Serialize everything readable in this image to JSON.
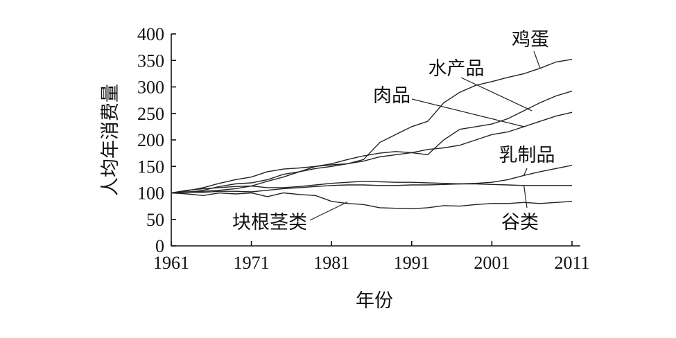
{
  "chart_data": {
    "type": "line",
    "xlabel": "年份",
    "ylabel": "人均年消费量",
    "xlim": [
      1961,
      2011
    ],
    "ylim": [
      0,
      400
    ],
    "xticks": [
      1961,
      1971,
      1981,
      1991,
      2001,
      2011
    ],
    "yticks": [
      0,
      50,
      100,
      150,
      200,
      250,
      300,
      350,
      400
    ],
    "grid": false,
    "legend": "inline labels with leader lines",
    "x": [
      1961,
      1963,
      1965,
      1967,
      1969,
      1971,
      1973,
      1975,
      1977,
      1979,
      1981,
      1983,
      1985,
      1987,
      1989,
      1991,
      1993,
      1995,
      1997,
      1999,
      2001,
      2003,
      2005,
      2007,
      2009,
      2011
    ],
    "series": [
      {
        "name": "鸡蛋",
        "values": [
          100,
          101,
          105,
          112,
          117,
          119,
          125,
          135,
          140,
          146,
          150,
          155,
          163,
          195,
          210,
          225,
          235,
          270,
          290,
          303,
          310,
          318,
          325,
          335,
          347,
          352
        ]
      },
      {
        "name": "水产品",
        "values": [
          100,
          102,
          103,
          105,
          108,
          113,
          122,
          130,
          140,
          150,
          155,
          163,
          170,
          175,
          178,
          176,
          172,
          200,
          220,
          225,
          230,
          240,
          255,
          270,
          283,
          292
        ]
      },
      {
        "name": "肉品",
        "values": [
          100,
          104,
          110,
          118,
          125,
          130,
          140,
          145,
          147,
          150,
          153,
          155,
          160,
          168,
          172,
          176,
          182,
          185,
          190,
          200,
          210,
          215,
          225,
          235,
          245,
          252
        ]
      },
      {
        "name": "乳制品",
        "values": [
          100,
          101,
          101,
          103,
          103,
          102,
          105,
          108,
          110,
          112,
          114,
          115,
          115,
          114,
          114,
          115,
          115,
          116,
          117,
          118,
          120,
          125,
          133,
          140,
          146,
          152
        ]
      },
      {
        "name": "谷类",
        "values": [
          100,
          105,
          108,
          110,
          112,
          113,
          110,
          110,
          112,
          115,
          118,
          120,
          122,
          121,
          120,
          120,
          119,
          118,
          117,
          117,
          116,
          115,
          114,
          114,
          114,
          114
        ]
      },
      {
        "name": "块根茎类",
        "values": [
          100,
          98,
          95,
          100,
          98,
          100,
          93,
          100,
          97,
          95,
          84,
          80,
          78,
          72,
          71,
          70,
          72,
          76,
          75,
          78,
          80,
          80,
          82,
          80,
          82,
          84
        ]
      }
    ],
    "annotations": [
      {
        "text": "鸡蛋",
        "points_to": [
          2007,
          336
        ]
      },
      {
        "text": "水产品",
        "points_to": [
          2006,
          255
        ]
      },
      {
        "text": "肉品",
        "points_to": [
          2005,
          225
        ]
      },
      {
        "text": "乳制品",
        "points_to": [
          2005,
          133
        ]
      },
      {
        "text": "谷类",
        "points_to": [
          2005,
          114
        ]
      },
      {
        "text": "块根茎类",
        "points_to": [
          1983,
          83
        ]
      }
    ]
  }
}
